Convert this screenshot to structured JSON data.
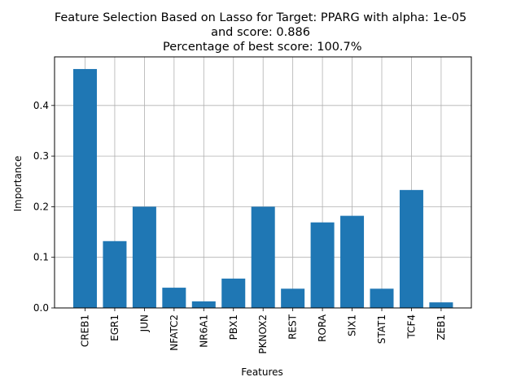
{
  "chart_data": {
    "type": "bar",
    "title": [
      "Feature Selection Based on Lasso for Target: PPARG with alpha: 1e-05",
      "and score: 0.886",
      " Percentage of best score: 100.7%"
    ],
    "xlabel": "Features",
    "ylabel": "Importance",
    "categories": [
      "CREB1",
      "EGR1",
      "JUN",
      "NFATC2",
      "NR6A1",
      "PBX1",
      "PKNOX2",
      "REST",
      "RORA",
      "SIX1",
      "STAT1",
      "TCF4",
      "ZEB1"
    ],
    "values": [
      0.472,
      0.132,
      0.2,
      0.04,
      0.013,
      0.058,
      0.2,
      0.038,
      0.169,
      0.182,
      0.038,
      0.233,
      0.011
    ],
    "ylim": [
      0,
      0.496
    ],
    "yticks": [
      0.0,
      0.1,
      0.2,
      0.3,
      0.4
    ],
    "ytick_labels": [
      "0.0",
      "0.1",
      "0.2",
      "0.3",
      "0.4"
    ],
    "grid": true,
    "bar_color": "#1f77b4",
    "grid_color": "#b0b0b0"
  }
}
